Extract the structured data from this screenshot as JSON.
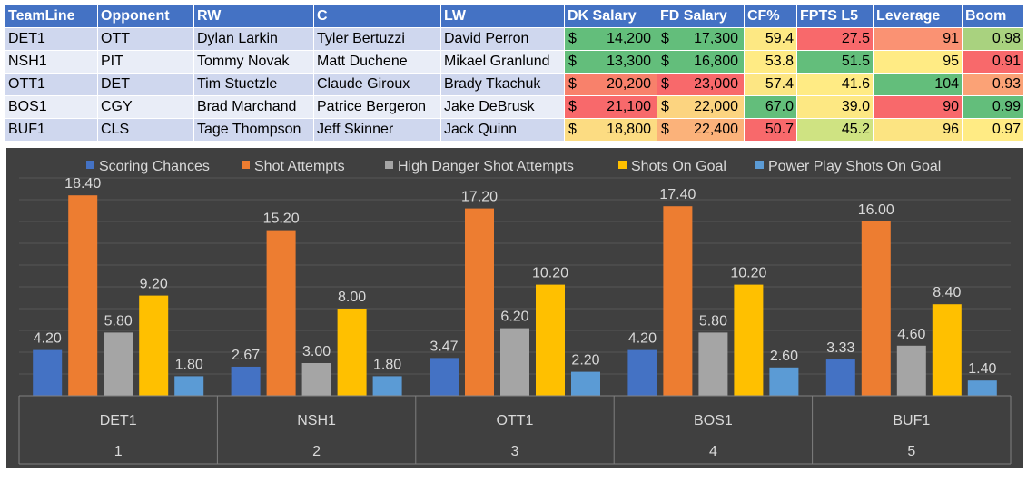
{
  "table": {
    "headers": [
      "TeamLine",
      "Opponent",
      "RW",
      "C",
      "LW",
      "DK Salary",
      "FD Salary",
      "CF%",
      "FPTS L5",
      "Leverage",
      "Boom"
    ],
    "rows": [
      {
        "teamline": "DET1",
        "opponent": "OTT",
        "rw": "Dylan Larkin",
        "c": "Tyler Bertuzzi",
        "lw": "David Perron",
        "dk": "14,200",
        "fd": "17,300",
        "cf": "59.4",
        "fpts": "27.5",
        "leverage": "91",
        "boom": "0.98"
      },
      {
        "teamline": "NSH1",
        "opponent": "PIT",
        "rw": "Tommy Novak",
        "c": "Matt Duchene",
        "lw": "Mikael Granlund",
        "dk": "13,300",
        "fd": "16,800",
        "cf": "53.8",
        "fpts": "51.5",
        "leverage": "95",
        "boom": "0.91"
      },
      {
        "teamline": "OTT1",
        "opponent": "DET",
        "rw": "Tim Stuetzle",
        "c": "Claude Giroux",
        "lw": "Brady Tkachuk",
        "dk": "20,200",
        "fd": "23,000",
        "cf": "57.4",
        "fpts": "41.6",
        "leverage": "104",
        "boom": "0.93"
      },
      {
        "teamline": "BOS1",
        "opponent": "CGY",
        "rw": "Brad Marchand",
        "c": "Patrice Bergeron",
        "lw": "Jake DeBrusk",
        "dk": "21,100",
        "fd": "22,000",
        "cf": "67.0",
        "fpts": "39.0",
        "leverage": "90",
        "boom": "0.99"
      },
      {
        "teamline": "BUF1",
        "opponent": "CLS",
        "rw": "Tage Thompson",
        "c": "Jeff Skinner",
        "lw": "Jack Quinn",
        "dk": "18,800",
        "fd": "22,400",
        "cf": "50.7",
        "fpts": "45.2",
        "leverage": "96",
        "boom": "0.97"
      }
    ],
    "currency_symbol": "$",
    "cell_colors": {
      "dk": [
        "#63be7b",
        "#63be7b",
        "#f8816b",
        "#f8696b",
        "#fcdc82"
      ],
      "fd": [
        "#63be7b",
        "#63be7b",
        "#f8696b",
        "#fcd480",
        "#fbb27a"
      ],
      "cf": [
        "#fde883",
        "#ffeb84",
        "#fde683",
        "#63be7b",
        "#f8696b"
      ],
      "fpts": [
        "#f8696b",
        "#63be7b",
        "#ffeb84",
        "#fde883",
        "#cfe382"
      ],
      "leverage": [
        "#fa9273",
        "#ffeb84",
        "#63be7b",
        "#f8696b",
        "#fce482"
      ],
      "boom": [
        "#a9d27f",
        "#f8696b",
        "#fba276",
        "#63be7b",
        "#ffeb84"
      ]
    }
  },
  "chart_data": {
    "type": "bar",
    "categories": [
      "DET1",
      "NSH1",
      "OTT1",
      "BOS1",
      "BUF1"
    ],
    "category_groups": [
      "1",
      "2",
      "3",
      "4",
      "5"
    ],
    "series": [
      {
        "name": "Scoring Chances",
        "values": [
          4.2,
          2.67,
          3.47,
          4.2,
          3.33
        ],
        "labels": [
          "4.20",
          "2.67",
          "3.47",
          "4.20",
          "3.33"
        ],
        "color": "#4472c4"
      },
      {
        "name": "Shot Attempts",
        "values": [
          18.4,
          15.2,
          17.2,
          17.4,
          16.0
        ],
        "labels": [
          "18.40",
          "15.20",
          "17.20",
          "17.40",
          "16.00"
        ],
        "color": "#ed7d31"
      },
      {
        "name": "High Danger Shot Attempts",
        "values": [
          5.8,
          3.0,
          6.2,
          5.8,
          4.6
        ],
        "labels": [
          "5.80",
          "3.00",
          "6.20",
          "5.80",
          "4.60"
        ],
        "color": "#a5a5a5"
      },
      {
        "name": "Shots On Goal",
        "values": [
          9.2,
          8.0,
          10.2,
          10.2,
          8.4
        ],
        "labels": [
          "9.20",
          "8.00",
          "10.20",
          "10.20",
          "8.40"
        ],
        "color": "#ffc000"
      },
      {
        "name": "Power Play Shots On Goal",
        "values": [
          1.8,
          1.8,
          2.2,
          2.6,
          1.4
        ],
        "labels": [
          "1.80",
          "1.80",
          "2.20",
          "2.60",
          "1.40"
        ],
        "color": "#5b9bd5"
      }
    ],
    "ylim": [
      0,
      20
    ],
    "grid": true,
    "legend_position": "top",
    "background": "#404040"
  }
}
